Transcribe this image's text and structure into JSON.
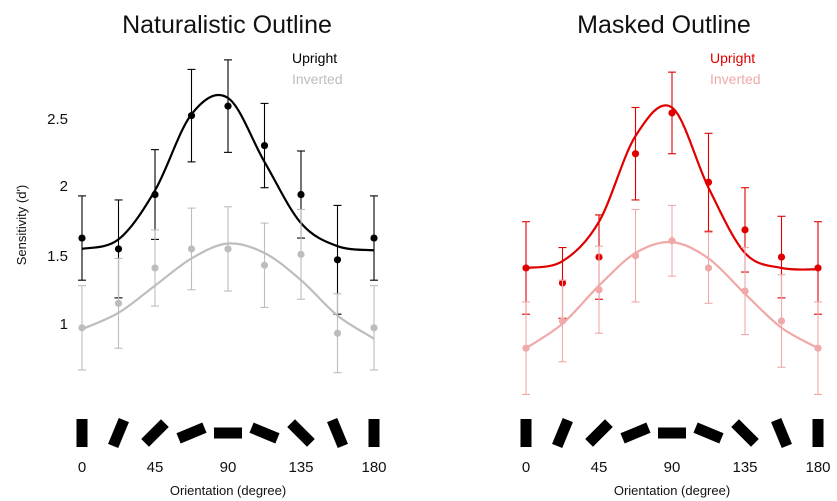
{
  "chart_data": [
    {
      "type": "scatter",
      "title": "Naturalistic Outline",
      "xlabel": "Orientation (degree)",
      "ylabel": "Sensitivity (d')",
      "xlim": [
        0,
        180
      ],
      "ylim": [
        0.6,
        2.85
      ],
      "x_ticks": [
        "0",
        "45",
        "90",
        "135",
        "180"
      ],
      "y_ticks": [
        "1",
        "1.5",
        "2",
        "2.5"
      ],
      "legend_position": "top-right",
      "series": [
        {
          "name": "Upright",
          "color": "#000000",
          "x": [
            0,
            22.5,
            45,
            67.5,
            90,
            112.5,
            135,
            157.5,
            180
          ],
          "values": [
            1.61,
            1.53,
            1.93,
            2.51,
            2.58,
            2.29,
            1.93,
            1.45,
            1.61
          ],
          "error": [
            0.31,
            0.36,
            0.33,
            0.34,
            0.34,
            0.31,
            0.32,
            0.4,
            0.31
          ],
          "fit": [
            1.53,
            1.6,
            1.96,
            2.52,
            2.64,
            2.17,
            1.72,
            1.55,
            1.52
          ]
        },
        {
          "name": "Inverted",
          "color": "#bdbdbd",
          "x": [
            0,
            22.5,
            45,
            67.5,
            90,
            112.5,
            135,
            157.5,
            180
          ],
          "values": [
            0.95,
            1.13,
            1.39,
            1.53,
            1.53,
            1.41,
            1.49,
            0.91,
            0.95
          ],
          "error": [
            0.31,
            0.33,
            0.28,
            0.3,
            0.31,
            0.31,
            0.33,
            0.29,
            0.31
          ],
          "fit": [
            0.94,
            1.06,
            1.26,
            1.46,
            1.57,
            1.5,
            1.3,
            1.04,
            0.87
          ]
        }
      ]
    },
    {
      "type": "scatter",
      "title": "Masked Outline",
      "xlabel": "Orientation (degree)",
      "ylabel": "",
      "xlim": [
        0,
        180
      ],
      "ylim": [
        0.6,
        2.85
      ],
      "x_ticks": [
        "0",
        "45",
        "90",
        "135",
        "180"
      ],
      "y_ticks": [],
      "legend_position": "top-right",
      "series": [
        {
          "name": "Upright",
          "color": "#e00000",
          "x": [
            0,
            22.5,
            45,
            67.5,
            90,
            112.5,
            135,
            157.5,
            180
          ],
          "values": [
            1.39,
            1.28,
            1.47,
            2.23,
            2.53,
            2.02,
            1.67,
            1.47,
            1.39
          ],
          "error": [
            0.34,
            0.26,
            0.31,
            0.34,
            0.3,
            0.36,
            0.31,
            0.3,
            0.34
          ],
          "fit": [
            1.39,
            1.44,
            1.73,
            2.36,
            2.57,
            1.98,
            1.5,
            1.39,
            1.38
          ]
        },
        {
          "name": "Inverted",
          "color": "#f0a8a8",
          "x": [
            0,
            22.5,
            45,
            67.5,
            90,
            112.5,
            135,
            157.5,
            180
          ],
          "values": [
            0.8,
            1.0,
            1.23,
            1.48,
            1.59,
            1.39,
            1.22,
            1.0,
            0.8
          ],
          "error": [
            0.34,
            0.3,
            0.32,
            0.34,
            0.26,
            0.26,
            0.32,
            0.34,
            0.34
          ],
          "fit": [
            0.8,
            0.98,
            1.26,
            1.5,
            1.58,
            1.46,
            1.2,
            0.95,
            0.8
          ]
        }
      ]
    }
  ]
}
